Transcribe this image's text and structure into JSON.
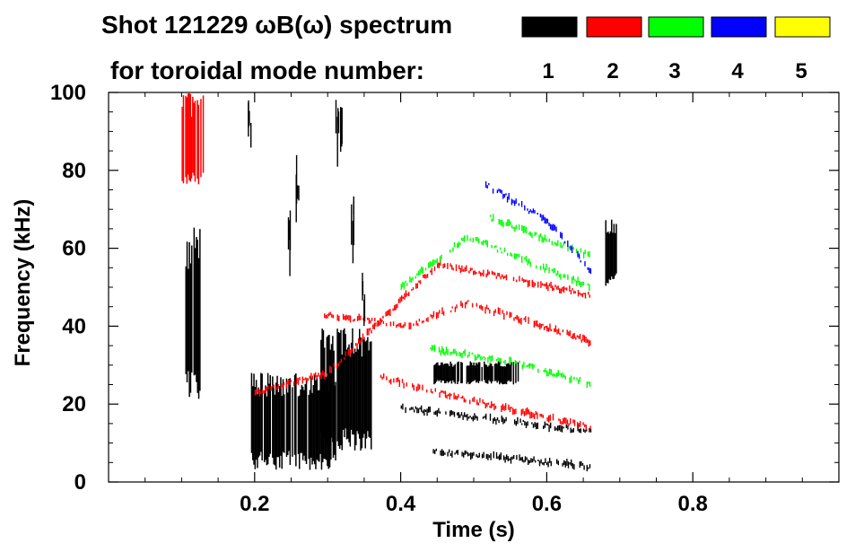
{
  "chart_data": {
    "type": "heatmap",
    "title": "Shot 121229 ωB(ω) spectrum",
    "subtitle": "for toroidal mode number:",
    "xlabel": "Time (s)",
    "ylabel": "Frequency (kHz)",
    "xlim": [
      0.0,
      1.0
    ],
    "ylim": [
      0,
      100
    ],
    "x_ticks": [
      0.2,
      0.4,
      0.6,
      0.8
    ],
    "x_tick_labels": [
      "0.2",
      "0.4",
      "0.6",
      "0.8"
    ],
    "y_ticks": [
      0,
      20,
      40,
      60,
      80,
      100
    ],
    "y_tick_labels": [
      "0",
      "20",
      "40",
      "60",
      "80",
      "100"
    ],
    "grid": false,
    "legend_position": "top-right",
    "legend": [
      {
        "label": "1",
        "color": "#000000"
      },
      {
        "label": "2",
        "color": "#ff0000"
      },
      {
        "label": "3",
        "color": "#00ff00"
      },
      {
        "label": "4",
        "color": "#0000ff"
      },
      {
        "label": "5",
        "color": "#ffff00"
      }
    ],
    "features": [
      {
        "mode": 1,
        "name": "early-broadband",
        "t": [
          0.105,
          0.125
        ],
        "f": [
          20,
          66
        ]
      },
      {
        "mode": 1,
        "name": "low-freq-band-1",
        "t": [
          0.195,
          0.31
        ],
        "f": [
          3,
          28
        ]
      },
      {
        "mode": 1,
        "name": "low-freq-band-2",
        "t": [
          0.29,
          0.36
        ],
        "f": [
          8,
          40
        ]
      },
      {
        "mode": 1,
        "name": "burst-0.44-0.56",
        "t": [
          0.445,
          0.56
        ],
        "f": [
          25,
          31
        ]
      },
      {
        "mode": 1,
        "name": "late-burst",
        "t": [
          0.68,
          0.695
        ],
        "f": [
          50,
          68
        ]
      },
      {
        "mode": 1,
        "name": "chirp-line-1",
        "points": [
          [
            0.4,
            19
          ],
          [
            0.66,
            13
          ]
        ]
      },
      {
        "mode": 1,
        "name": "chirp-line-2",
        "points": [
          [
            0.44,
            8
          ],
          [
            0.66,
            4
          ]
        ]
      },
      {
        "mode": 2,
        "name": "early-red",
        "t": [
          0.1,
          0.13
        ],
        "f": [
          75,
          100
        ]
      },
      {
        "mode": 2,
        "name": "chirp-a",
        "points": [
          [
            0.295,
            43
          ],
          [
            0.41,
            40
          ],
          [
            0.49,
            46
          ],
          [
            0.66,
            36
          ]
        ]
      },
      {
        "mode": 2,
        "name": "chirp-b",
        "points": [
          [
            0.2,
            23
          ],
          [
            0.3,
            28
          ],
          [
            0.45,
            56
          ],
          [
            0.66,
            48
          ]
        ]
      },
      {
        "mode": 2,
        "name": "chirp-c",
        "points": [
          [
            0.37,
            27
          ],
          [
            0.47,
            22
          ],
          [
            0.66,
            14
          ]
        ]
      },
      {
        "mode": 3,
        "name": "chirp-a",
        "points": [
          [
            0.4,
            50
          ],
          [
            0.49,
            63
          ],
          [
            0.66,
            50
          ]
        ]
      },
      {
        "mode": 3,
        "name": "chirp-b",
        "points": [
          [
            0.52,
            68
          ],
          [
            0.66,
            58
          ]
        ]
      },
      {
        "mode": 3,
        "name": "chirp-c",
        "points": [
          [
            0.44,
            34
          ],
          [
            0.55,
            31
          ],
          [
            0.66,
            25
          ]
        ]
      },
      {
        "mode": 4,
        "name": "chirp-a",
        "points": [
          [
            0.51,
            77
          ],
          [
            0.6,
            67
          ],
          [
            0.66,
            54
          ]
        ]
      }
    ]
  }
}
